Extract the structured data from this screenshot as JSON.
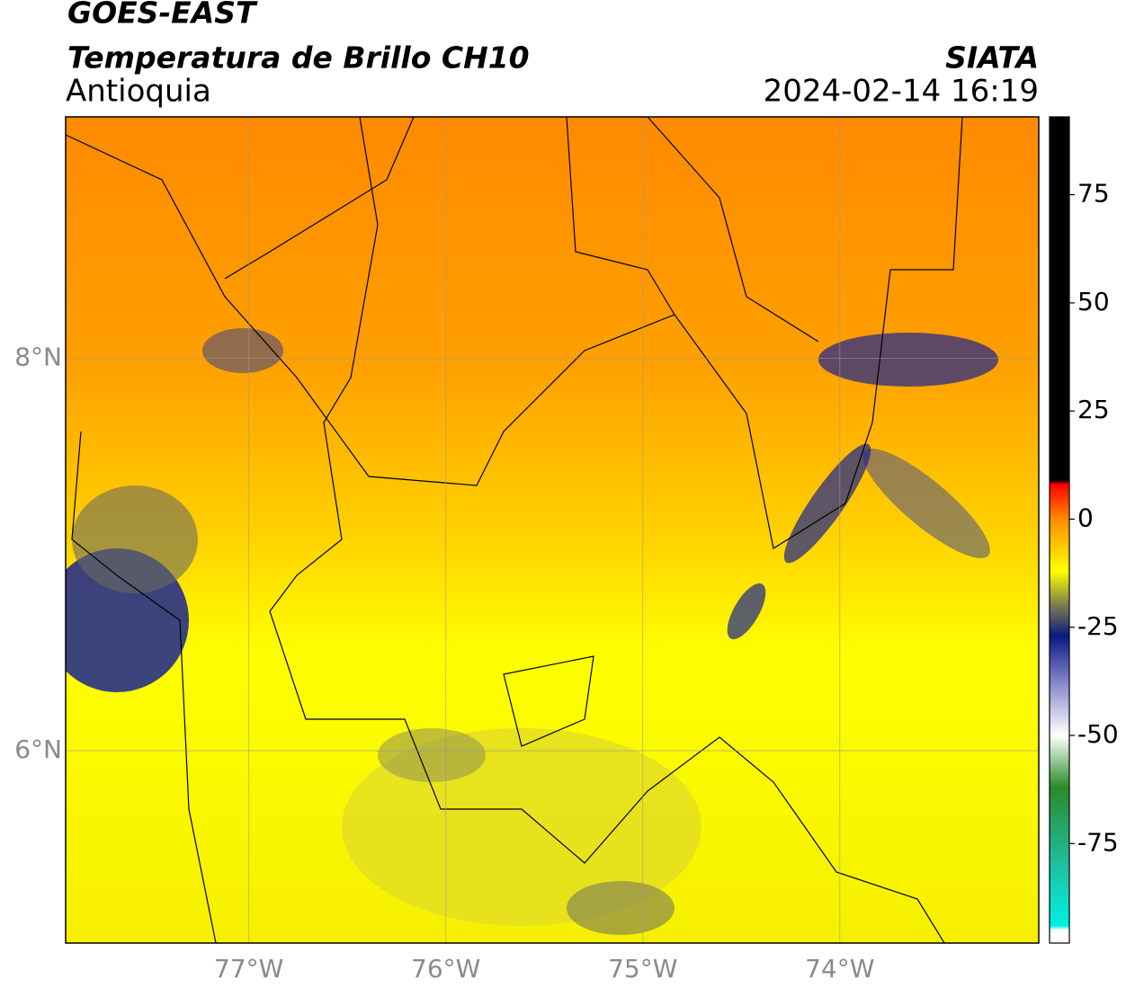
{
  "header": {
    "title": "GOES-EAST",
    "subtitle": "Temperatura de Brillo CH10",
    "region": "Antioquia",
    "source": "SIATA",
    "datetime": "2024-02-14 16:19"
  },
  "map": {
    "xlim": [
      -77.93,
      -72.99
    ],
    "ylim": [
      5.02,
      9.23
    ],
    "xticks": [
      {
        "value": -77,
        "label": "77°W"
      },
      {
        "value": -76,
        "label": "76°W"
      },
      {
        "value": -75,
        "label": "75°W"
      },
      {
        "value": -74,
        "label": "74°W"
      }
    ],
    "yticks": [
      {
        "value": 6,
        "label": "6°N"
      },
      {
        "value": 8,
        "label": "8°N"
      }
    ],
    "grid": true
  },
  "colorbar": {
    "lim": [
      -98,
      93
    ],
    "ticks": [
      -75,
      -50,
      -25,
      0,
      25,
      50,
      75
    ],
    "stops": [
      {
        "value": 93,
        "color": "#000000"
      },
      {
        "value": 9,
        "color": "#000000"
      },
      {
        "value": 8,
        "color": "#ff0000"
      },
      {
        "value": 0,
        "color": "#ff8c00"
      },
      {
        "value": -12,
        "color": "#ffff00"
      },
      {
        "value": -20,
        "color": "#7a7a50"
      },
      {
        "value": -27,
        "color": "#0a1a80"
      },
      {
        "value": -38,
        "color": "#8888cc"
      },
      {
        "value": -50,
        "color": "#ffffff"
      },
      {
        "value": -62,
        "color": "#2a8a2a"
      },
      {
        "value": -80,
        "color": "#20c0a0"
      },
      {
        "value": -94,
        "color": "#00f0e0"
      },
      {
        "value": -95,
        "color": "#ffffff"
      }
    ]
  }
}
